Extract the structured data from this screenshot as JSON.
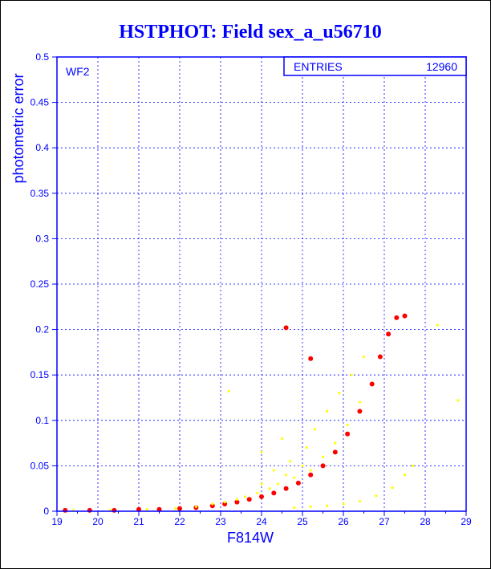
{
  "chart_data": {
    "type": "scatter",
    "title": "HSTPHOT: Field sex_a_u56710",
    "xlabel": "F814W",
    "ylabel": "photometric error",
    "xlim": [
      19,
      29
    ],
    "ylim": [
      0,
      0.5
    ],
    "x_ticks": [
      "19",
      "20",
      "21",
      "22",
      "23",
      "24",
      "25",
      "26",
      "27",
      "28",
      "29"
    ],
    "y_ticks": [
      "0",
      "0.05",
      "0.1",
      "0.15",
      "0.2",
      "0.25",
      "0.3",
      "0.35",
      "0.4",
      "0.45",
      "0.5"
    ],
    "grid": true,
    "panel_label": "WF2",
    "stats_box": {
      "label": "ENTRIES",
      "value": "12960"
    },
    "series": [
      {
        "color": "#ffff00",
        "points": [
          [
            19.4,
            0.001
          ],
          [
            20.3,
            0.001
          ],
          [
            21.2,
            0.002
          ],
          [
            21.9,
            0.003
          ],
          [
            22.4,
            0.005
          ],
          [
            22.8,
            0.008
          ],
          [
            23.1,
            0.01
          ],
          [
            23.2,
            0.132
          ],
          [
            23.4,
            0.013
          ],
          [
            23.6,
            0.016
          ],
          [
            23.9,
            0.02
          ],
          [
            24.0,
            0.03
          ],
          [
            24.2,
            0.025
          ],
          [
            24.3,
            0.045
          ],
          [
            24.4,
            0.03
          ],
          [
            24.6,
            0.04
          ],
          [
            24.7,
            0.055
          ],
          [
            24.8,
            0.037
          ],
          [
            25.0,
            0.05
          ],
          [
            25.1,
            0.07
          ],
          [
            25.2,
            0.045
          ],
          [
            25.3,
            0.09
          ],
          [
            25.5,
            0.06
          ],
          [
            25.6,
            0.11
          ],
          [
            25.8,
            0.075
          ],
          [
            25.9,
            0.13
          ],
          [
            26.1,
            0.095
          ],
          [
            26.2,
            0.15
          ],
          [
            26.4,
            0.12
          ],
          [
            26.5,
            0.17
          ],
          [
            24.8,
            0.004
          ],
          [
            25.2,
            0.005
          ],
          [
            25.6,
            0.006
          ],
          [
            26.0,
            0.008
          ],
          [
            26.4,
            0.011
          ],
          [
            26.8,
            0.017
          ],
          [
            27.2,
            0.026
          ],
          [
            27.5,
            0.04
          ],
          [
            27.7,
            0.05
          ],
          [
            28.3,
            0.205
          ],
          [
            28.8,
            0.122
          ],
          [
            24.0,
            0.065
          ],
          [
            24.5,
            0.08
          ]
        ]
      },
      {
        "color": "#ff0000",
        "points": [
          [
            19.2,
            0.001
          ],
          [
            19.8,
            0.001
          ],
          [
            20.4,
            0.001
          ],
          [
            21.0,
            0.002
          ],
          [
            21.5,
            0.002
          ],
          [
            22.0,
            0.003
          ],
          [
            22.4,
            0.004
          ],
          [
            22.8,
            0.006
          ],
          [
            23.1,
            0.008
          ],
          [
            23.4,
            0.01
          ],
          [
            23.7,
            0.013
          ],
          [
            24.0,
            0.016
          ],
          [
            24.3,
            0.02
          ],
          [
            24.6,
            0.025
          ],
          [
            24.9,
            0.031
          ],
          [
            25.2,
            0.04
          ],
          [
            25.5,
            0.05
          ],
          [
            25.8,
            0.065
          ],
          [
            26.1,
            0.085
          ],
          [
            26.4,
            0.11
          ],
          [
            26.7,
            0.14
          ],
          [
            26.9,
            0.17
          ],
          [
            27.1,
            0.195
          ],
          [
            27.3,
            0.213
          ],
          [
            27.5,
            0.215
          ],
          [
            24.6,
            0.202
          ],
          [
            25.2,
            0.168
          ]
        ]
      }
    ]
  }
}
